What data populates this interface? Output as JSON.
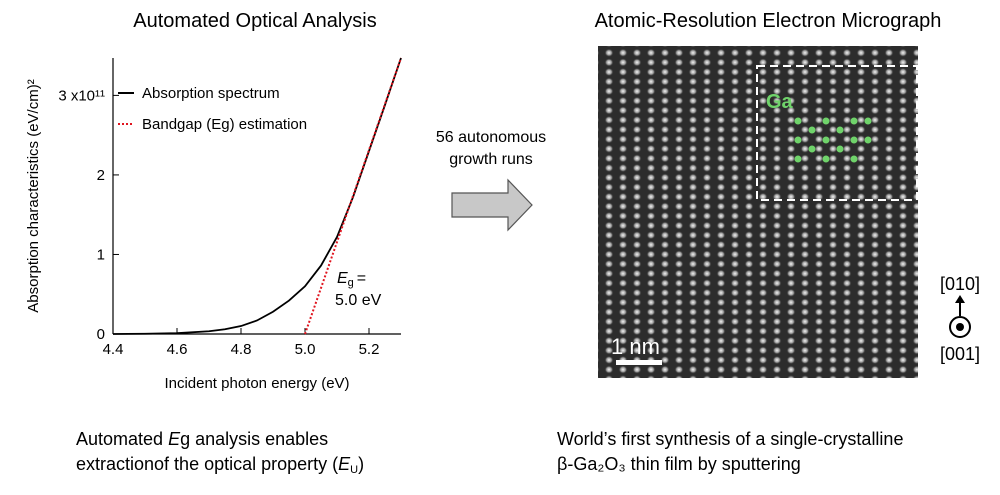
{
  "chart_data": {
    "type": "line",
    "title": "Automated Optical Analysis",
    "x_label": "Incident photon energy (eV)",
    "y_label": "Absorption characteristics (eV/cm)²",
    "series": [
      {
        "name": "Absorption spectrum",
        "color": "#000000",
        "style": "solid",
        "x": [
          4.4,
          4.5,
          4.6,
          4.7,
          4.75,
          4.8,
          4.85,
          4.9,
          4.95,
          5.0,
          5.05,
          5.1,
          5.15,
          5.2,
          5.25,
          5.3
        ],
        "values": [
          0,
          0.003,
          0.01,
          0.035,
          0.06,
          0.1,
          0.17,
          0.28,
          0.42,
          0.6,
          0.86,
          1.22,
          1.72,
          2.3,
          2.88,
          3.47
        ]
      },
      {
        "name": "Bandgap (Eg) estimation",
        "color": "#e0141e",
        "style": "dotted",
        "x": [
          5.0,
          5.3
        ],
        "values": [
          0,
          3.47
        ]
      }
    ],
    "xlim": [
      4.4,
      5.3
    ],
    "ylim": [
      0,
      3.47
    ],
    "xticks": [
      4.4,
      4.6,
      4.8,
      {
        "value": 5,
        "label": "5.0"
      },
      5.2
    ],
    "yticks": [
      0,
      1,
      2,
      {
        "value": 3,
        "label": "3 x10¹¹"
      }
    ],
    "annotation": {
      "symbol": "E",
      "subscript": "g",
      "equals": "=",
      "value": "5.0 eV"
    }
  },
  "arrow_text": [
    "56 autonomous",
    "growth runs"
  ],
  "micrograph": {
    "title": "Atomic-Resolution Electron Micrograph",
    "element": "Ga",
    "scale": "1 nm",
    "direction_top": "[010]",
    "direction_bottom": "[001]"
  },
  "captions": {
    "left": [
      "Automated ",
      "E",
      "g analysis enables",
      "extractionof the optical property (",
      "E",
      "U",
      ")"
    ],
    "right": [
      "World’s first synthesis of a single-crystalline",
      "β-Ga₂O₃ thin film by sputtering"
    ]
  }
}
